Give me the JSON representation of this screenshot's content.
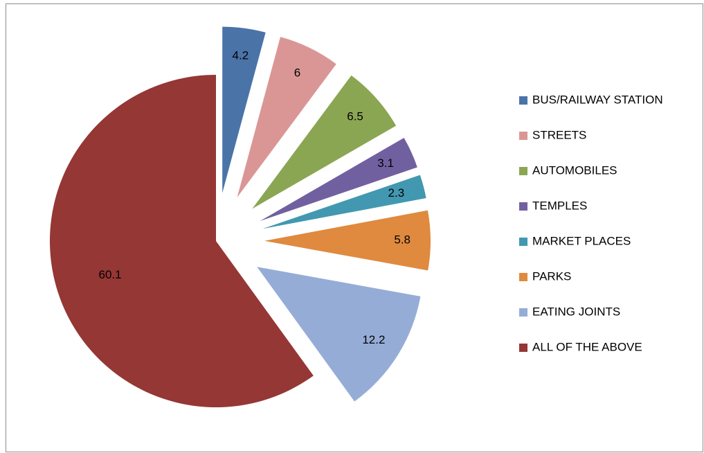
{
  "chart_data": {
    "type": "pie",
    "categories": [
      "BUS/RAILWAY STATION",
      "STREETS",
      "AUTOMOBILES",
      "TEMPLES",
      "MARKET PLACES",
      "PARKS",
      "EATING JOINTS",
      "ALL OF THE ABOVE"
    ],
    "values": [
      4.2,
      6,
      6.5,
      3.1,
      2.3,
      5.8,
      12.2,
      60.1
    ],
    "colors": [
      "#4a73a8",
      "#da9695",
      "#8ba653",
      "#7160a0",
      "#4298b0",
      "#df8a3f",
      "#95add6",
      "#953735"
    ],
    "legend": "right"
  }
}
